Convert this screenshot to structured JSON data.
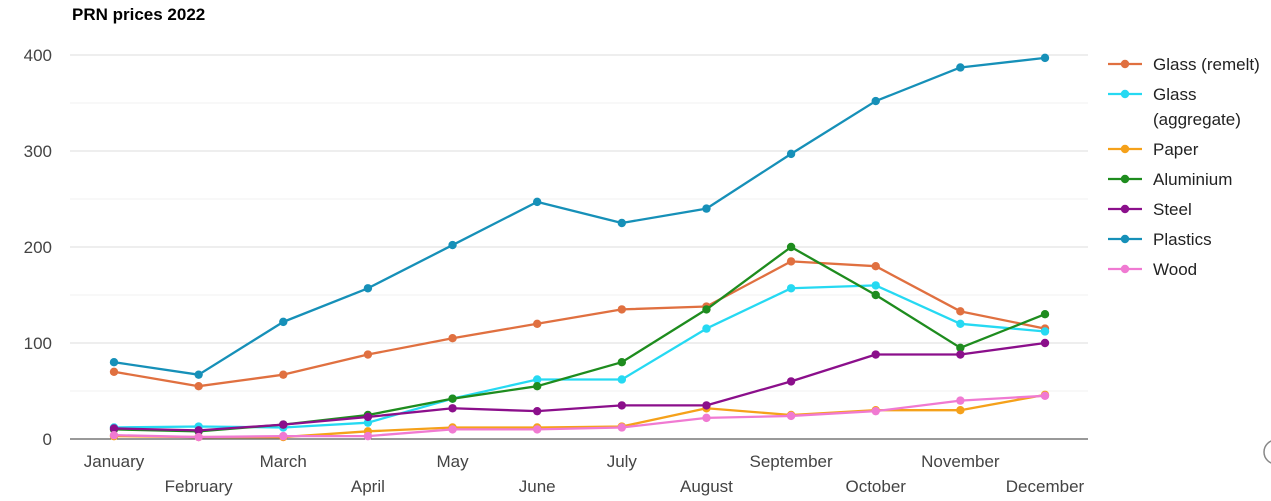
{
  "chart_data": {
    "type": "line",
    "title": "PRN prices 2022",
    "xlabel": "",
    "ylabel": "",
    "categories": [
      "January",
      "February",
      "March",
      "April",
      "May",
      "June",
      "July",
      "August",
      "September",
      "October",
      "November",
      "December"
    ],
    "ylim": [
      0,
      400
    ],
    "yticks": [
      0,
      100,
      200,
      300,
      400
    ],
    "grid": true,
    "legend_position": "right",
    "series": [
      {
        "name": "Glass (remelt)",
        "color": "#e07040",
        "values": [
          70,
          55,
          67,
          88,
          105,
          120,
          135,
          138,
          185,
          180,
          133,
          115
        ]
      },
      {
        "name": "Glass (aggregate)",
        "color": "#26d9f2",
        "values": [
          12,
          13,
          12,
          17,
          42,
          62,
          62,
          115,
          157,
          160,
          120,
          112
        ]
      },
      {
        "name": "Paper",
        "color": "#f5a11a",
        "values": [
          3,
          2,
          2,
          8,
          12,
          12,
          13,
          32,
          25,
          30,
          30,
          46
        ]
      },
      {
        "name": "Aluminium",
        "color": "#1e8c1e",
        "values": [
          10,
          8,
          15,
          25,
          42,
          55,
          80,
          135,
          200,
          150,
          95,
          130
        ]
      },
      {
        "name": "Steel",
        "color": "#8b0f8b",
        "values": [
          11,
          9,
          15,
          23,
          32,
          29,
          35,
          35,
          60,
          88,
          88,
          100
        ]
      },
      {
        "name": "Plastics",
        "color": "#1690b8",
        "values": [
          80,
          67,
          122,
          157,
          202,
          247,
          225,
          240,
          297,
          352,
          387,
          397
        ]
      },
      {
        "name": "Wood",
        "color": "#f07ad2",
        "values": [
          4,
          2,
          3,
          3,
          10,
          10,
          12,
          22,
          24,
          29,
          40,
          45
        ]
      }
    ]
  }
}
